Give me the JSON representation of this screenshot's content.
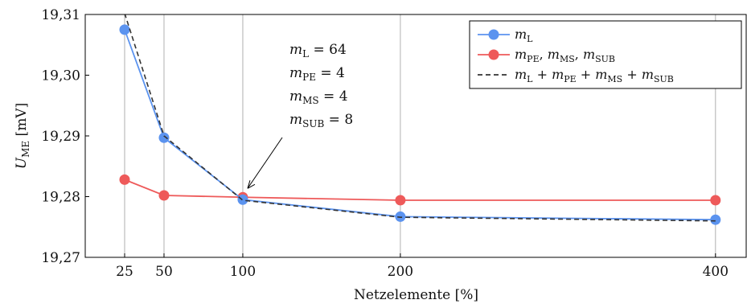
{
  "chart_data": {
    "type": "line",
    "x": [
      25,
      50,
      100,
      200,
      400
    ],
    "xticks": [
      "25",
      "50",
      "100",
      "200",
      "400"
    ],
    "xlabel": "Netzelemente [%]",
    "ylabel": "U_ME [mV]",
    "ylabel_main": "U",
    "ylabel_sub": "ME",
    "ylabel_unit": " [mV]",
    "xlim": [
      0,
      420
    ],
    "ylim": [
      19.27,
      19.31
    ],
    "yticks": [
      "19,27",
      "19,28",
      "19,29",
      "19,30",
      "19,31"
    ],
    "ytick_values": [
      19.27,
      19.28,
      19.29,
      19.3,
      19.31
    ],
    "grid": "vertical at x ticks",
    "legend_position": "top-right",
    "series": [
      {
        "name": "m_L",
        "legend_html": "<tspan font-style='italic'>m</tspan><tspan font-size='11' dy='4'>L</tspan>",
        "color": "#5b93ef",
        "style": "solid-marker",
        "values": [
          19.3075,
          19.2897,
          19.2795,
          19.2767,
          19.2762
        ]
      },
      {
        "name": "m_PE, m_MS, m_SUB",
        "color": "#ee5a5a",
        "style": "solid-marker",
        "values": [
          19.2828,
          19.2802,
          19.2799,
          19.2794,
          19.2794
        ]
      },
      {
        "name": "m_L + m_PE + m_MS + m_SUB",
        "color": "#333333",
        "style": "dashed",
        "values": [
          19.3102,
          19.29,
          19.2794,
          19.2766,
          19.276
        ]
      }
    ],
    "annotation": {
      "lines": [
        "m_L = 64",
        "m_PE = 4",
        "m_MS = 4",
        "m_SUB = 8"
      ],
      "points_to": {
        "x": 100,
        "y": 19.2795
      }
    }
  }
}
